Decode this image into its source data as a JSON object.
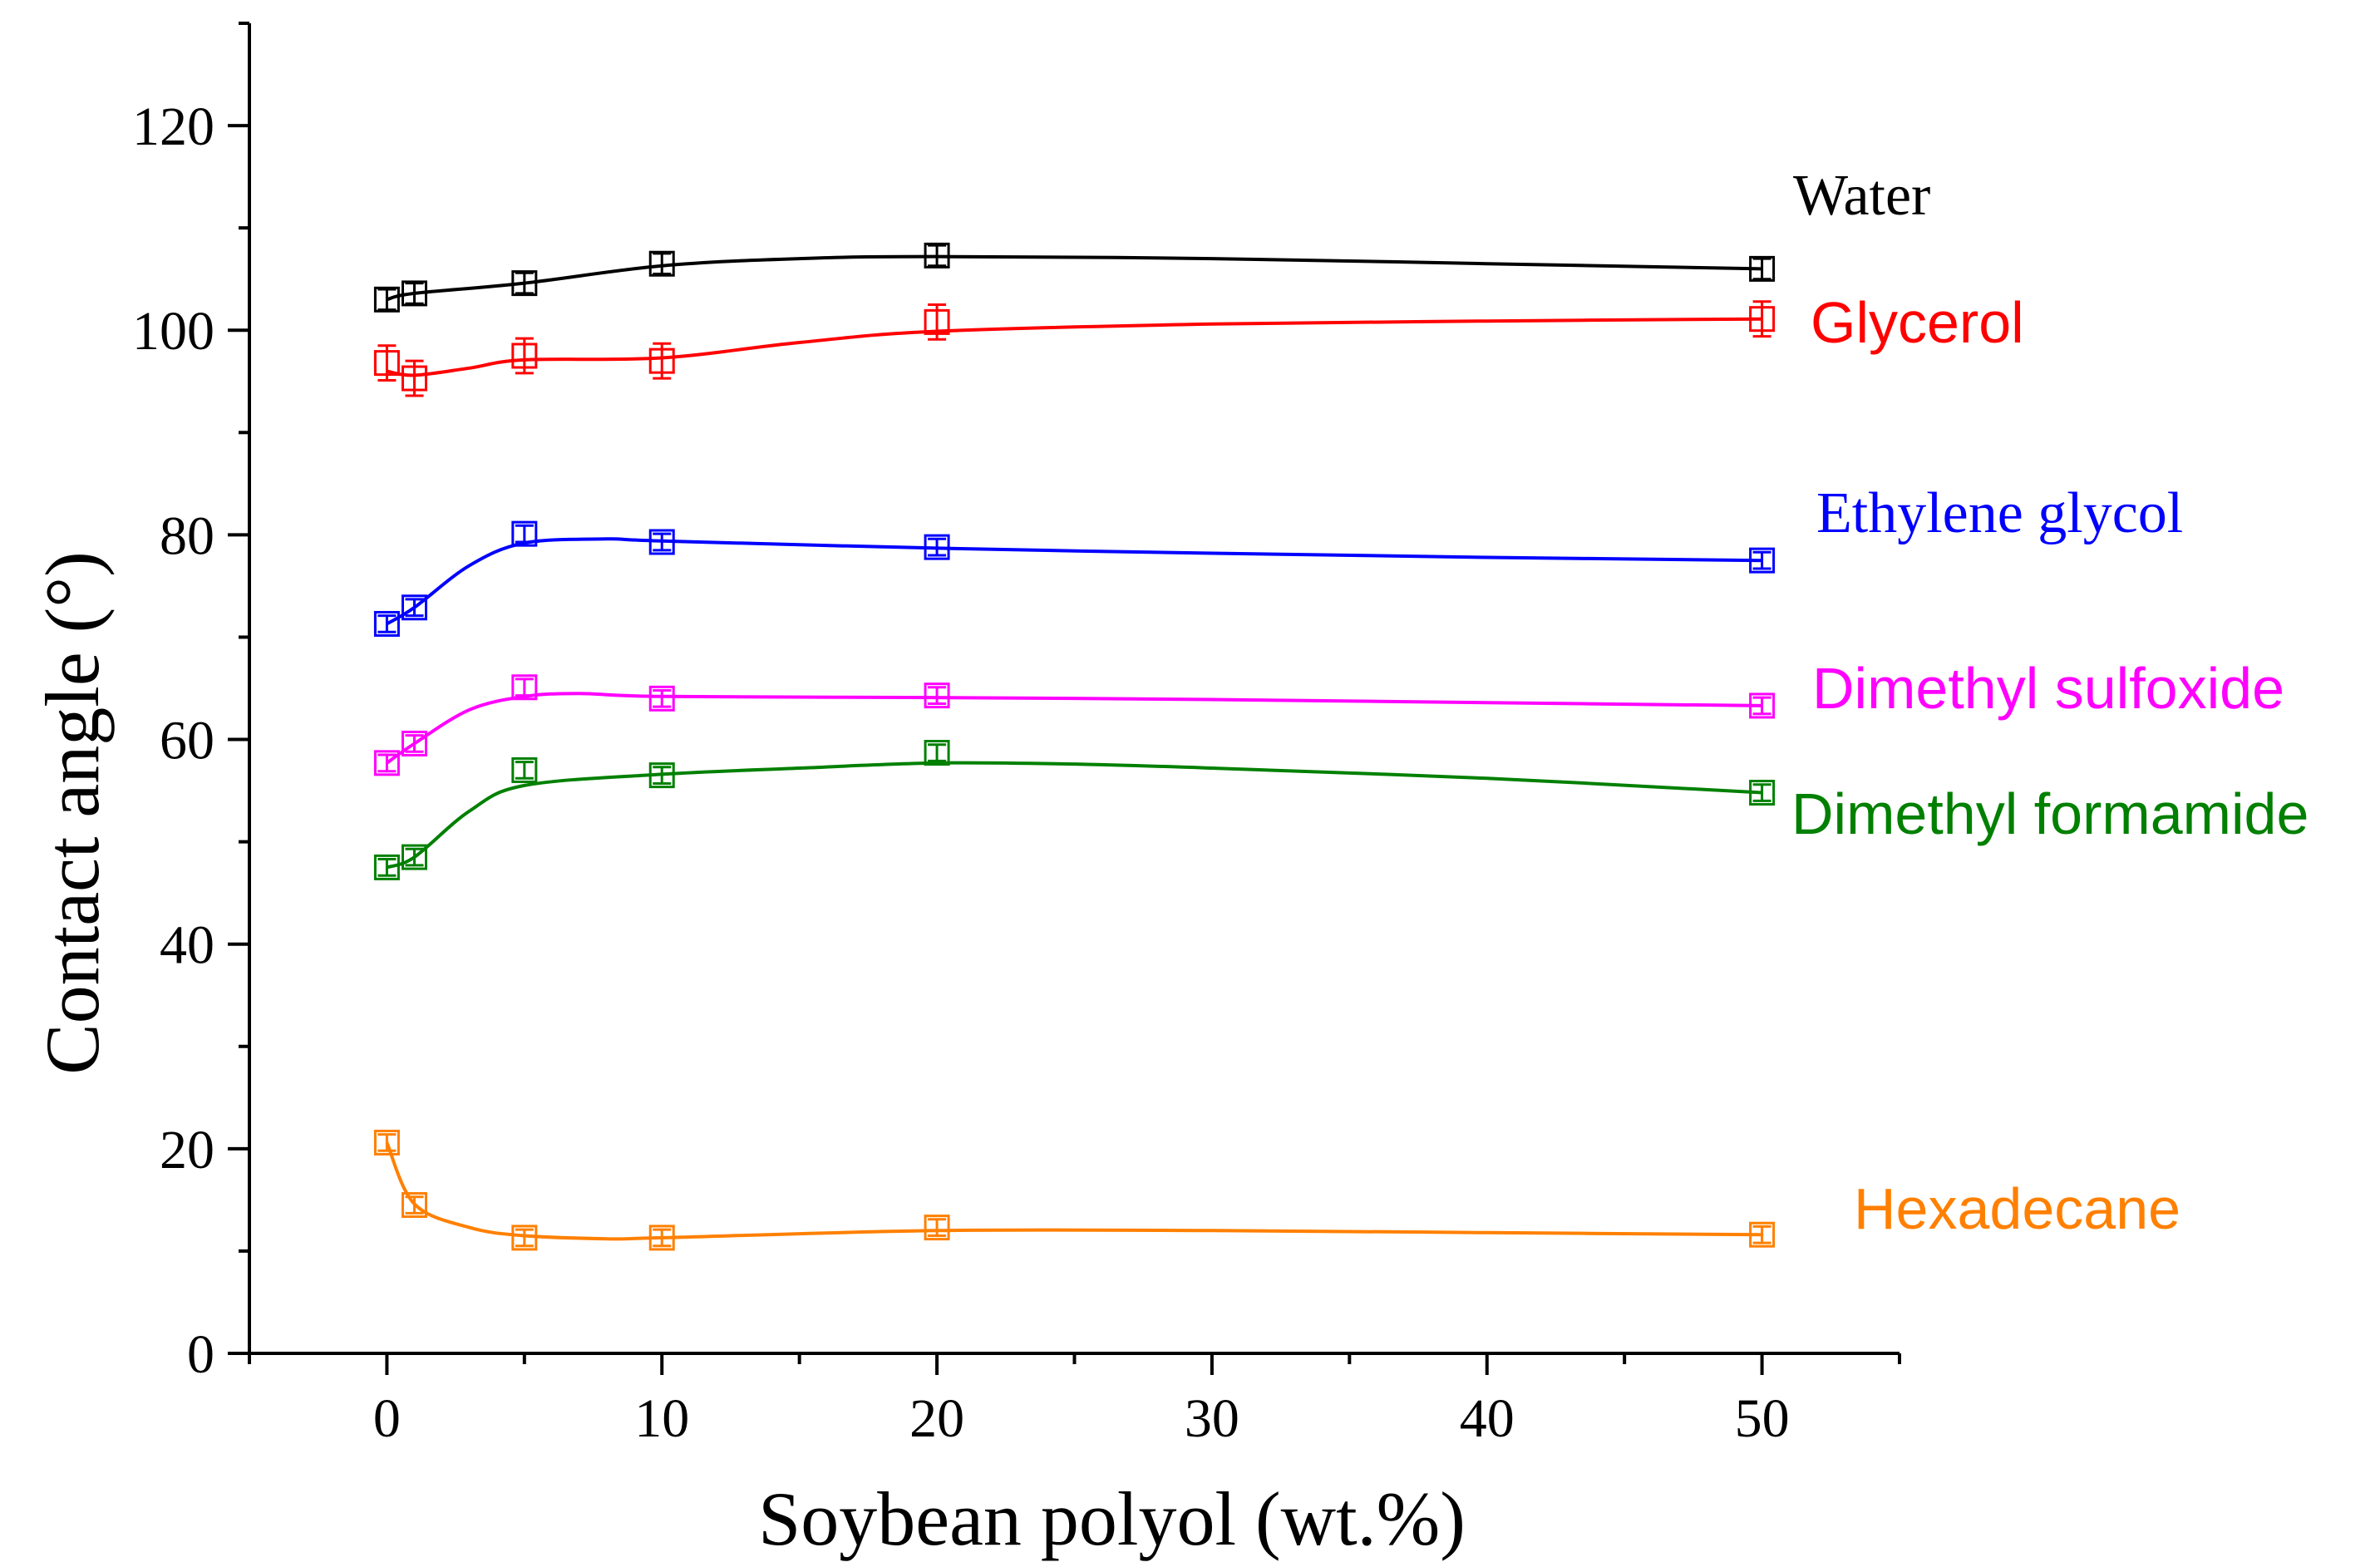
{
  "chart_data": {
    "type": "line",
    "title": "",
    "xlabel": "Soybean polyol (wt.%)",
    "ylabel": "Contact angle (°)",
    "xlim": [
      -5,
      55
    ],
    "ylim": [
      0,
      130
    ],
    "xticks": [
      0,
      10,
      20,
      30,
      40,
      50
    ],
    "yticks": [
      0,
      20,
      40,
      60,
      80,
      100,
      120
    ],
    "x": [
      0,
      1,
      5,
      10,
      20,
      50
    ],
    "series": [
      {
        "name": "Water",
        "color": "#000000",
        "values": [
          103.0,
          103.6,
          104.6,
          106.5,
          107.3,
          106.0
        ],
        "errors": [
          1.0,
          1.0,
          1.0,
          1.0,
          1.0,
          1.0
        ],
        "curve": [
          [
            0,
            103.0
          ],
          [
            1,
            103.6
          ],
          [
            5,
            104.6
          ],
          [
            10,
            106.3
          ],
          [
            15,
            107.0
          ],
          [
            20,
            107.2
          ],
          [
            30,
            107.0
          ],
          [
            40,
            106.5
          ],
          [
            50,
            106.0
          ]
        ]
      },
      {
        "name": "Glycerol",
        "color": "#ff0000",
        "values": [
          96.8,
          95.3,
          97.5,
          97.0,
          100.8,
          101.1
        ],
        "errors": [
          1.7,
          1.7,
          1.7,
          1.7,
          1.7,
          1.7
        ],
        "curve": [
          [
            0,
            96.0
          ],
          [
            1,
            95.6
          ],
          [
            3,
            96.3
          ],
          [
            5,
            97.1
          ],
          [
            10,
            97.3
          ],
          [
            15,
            98.8
          ],
          [
            20,
            99.9
          ],
          [
            30,
            100.6
          ],
          [
            40,
            100.9
          ],
          [
            50,
            101.1
          ]
        ]
      },
      {
        "name": "Ethylene glycol",
        "color": "#0000ff",
        "values": [
          71.3,
          72.9,
          80.1,
          79.3,
          78.8,
          77.5
        ],
        "errors": [
          0.8,
          0.8,
          0.8,
          0.8,
          0.8,
          0.8
        ],
        "curve": [
          [
            0,
            71.3
          ],
          [
            1,
            72.9
          ],
          [
            3,
            77.0
          ],
          [
            5,
            79.2
          ],
          [
            8,
            79.6
          ],
          [
            10,
            79.4
          ],
          [
            20,
            78.7
          ],
          [
            30,
            78.2
          ],
          [
            40,
            77.8
          ],
          [
            50,
            77.5
          ]
        ]
      },
      {
        "name": "Dimethyl sulfoxide",
        "color": "#ff00ff",
        "values": [
          57.7,
          59.6,
          65.1,
          64.0,
          64.3,
          63.3
        ],
        "errors": [
          0.8,
          0.8,
          0.8,
          0.8,
          0.8,
          0.8
        ],
        "curve": [
          [
            0,
            57.7
          ],
          [
            1,
            59.6
          ],
          [
            3,
            62.9
          ],
          [
            5,
            64.2
          ],
          [
            7,
            64.5
          ],
          [
            10,
            64.2
          ],
          [
            20,
            64.1
          ],
          [
            30,
            63.9
          ],
          [
            40,
            63.6
          ],
          [
            50,
            63.3
          ]
        ]
      },
      {
        "name": "Dimethyl formamide",
        "color": "#008000",
        "values": [
          47.5,
          48.5,
          57.0,
          56.5,
          58.7,
          54.8
        ],
        "errors": [
          0.8,
          0.8,
          0.8,
          0.8,
          0.8,
          0.8
        ],
        "curve": [
          [
            0,
            47.5
          ],
          [
            1,
            48.5
          ],
          [
            3,
            53.0
          ],
          [
            5,
            55.5
          ],
          [
            10,
            56.6
          ],
          [
            15,
            57.2
          ],
          [
            20,
            57.7
          ],
          [
            25,
            57.6
          ],
          [
            30,
            57.2
          ],
          [
            40,
            56.2
          ],
          [
            50,
            54.8
          ]
        ]
      },
      {
        "name": "Hexadecane",
        "color": "#ff8000",
        "values": [
          20.6,
          14.5,
          11.3,
          11.3,
          12.3,
          11.6
        ],
        "errors": [
          0.8,
          0.8,
          0.8,
          0.8,
          0.8,
          0.8
        ],
        "curve": [
          [
            0,
            20.6
          ],
          [
            1,
            14.6
          ],
          [
            3,
            12.3
          ],
          [
            5,
            11.5
          ],
          [
            8,
            11.2
          ],
          [
            10,
            11.3
          ],
          [
            20,
            12.0
          ],
          [
            30,
            12.0
          ],
          [
            40,
            11.8
          ],
          [
            50,
            11.6
          ]
        ]
      }
    ],
    "series_labels": [
      {
        "name": "Water",
        "color": "#000000",
        "font": "serif"
      },
      {
        "name": "Glycerol",
        "color": "#ff0000",
        "font": "sans"
      },
      {
        "name": "Ethylene glycol",
        "color": "#0000ff",
        "font": "serif"
      },
      {
        "name": "Dimethyl sulfoxide",
        "color": "#ff00ff",
        "font": "sans"
      },
      {
        "name": "Dimethyl formamide",
        "color": "#008000",
        "font": "sans"
      },
      {
        "name": "Hexadecane",
        "color": "#ff8000",
        "font": "sans"
      }
    ],
    "legend": "none (labels placed at right end of each series)"
  }
}
